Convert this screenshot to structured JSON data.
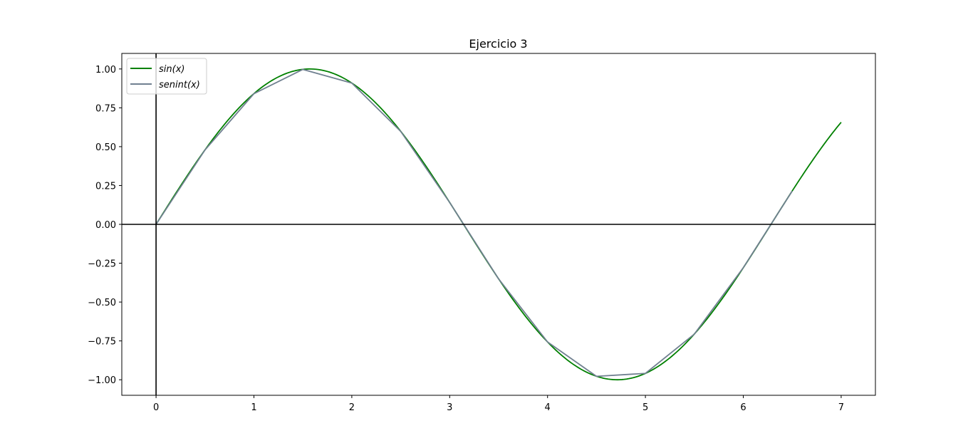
{
  "chart_data": {
    "type": "line",
    "title": "Ejercicio 3",
    "xlabel": "",
    "ylabel": "",
    "xlim": [
      -0.35,
      7.35
    ],
    "ylim": [
      -1.1,
      1.1
    ],
    "x_ticks": [
      0,
      1,
      2,
      3,
      4,
      5,
      6,
      7
    ],
    "x_tick_labels": [
      "0",
      "1",
      "2",
      "3",
      "4",
      "5",
      "6",
      "7"
    ],
    "y_ticks": [
      1.0,
      0.75,
      0.5,
      0.25,
      0.0,
      -0.25,
      -0.5,
      -0.75,
      -1.0
    ],
    "y_tick_labels": [
      "1.00",
      "0.75",
      "0.50",
      "0.25",
      "0.00",
      "−0.25",
      "−0.50",
      "−0.75",
      "−1.00"
    ],
    "grid": false,
    "legend_position": "top-left",
    "reference_lines": {
      "horizontal_y": 0,
      "vertical_x": 0,
      "color": "#000000"
    },
    "series": [
      {
        "name": "sin(x)",
        "color": "#008000",
        "x": [
          0.0,
          0.25,
          0.5,
          0.75,
          1.0,
          1.25,
          1.5,
          1.75,
          2.0,
          2.25,
          2.5,
          2.75,
          3.0,
          3.25,
          3.5,
          3.75,
          4.0,
          4.25,
          4.5,
          4.75,
          5.0,
          5.25,
          5.5,
          5.75,
          6.0,
          6.25,
          6.5,
          6.75,
          7.0
        ],
        "y": [
          0.0,
          0.247,
          0.479,
          0.682,
          0.841,
          0.949,
          0.997,
          0.984,
          0.909,
          0.778,
          0.598,
          0.382,
          0.141,
          -0.108,
          -0.351,
          -0.572,
          -0.757,
          -0.895,
          -0.978,
          -0.999,
          -0.959,
          -0.859,
          -0.706,
          -0.508,
          -0.279,
          -0.033,
          0.215,
          0.451,
          0.657
        ]
      },
      {
        "name": "senint(x)",
        "color": "#708090",
        "x": [
          0.0,
          0.5,
          1.0,
          1.5,
          2.0,
          2.5,
          3.0,
          3.5,
          4.0,
          4.5,
          5.0,
          5.5,
          6.0,
          6.5
        ],
        "y": [
          0.0,
          0.479,
          0.841,
          0.997,
          0.909,
          0.598,
          0.141,
          -0.351,
          -0.757,
          -0.978,
          -0.959,
          -0.706,
          -0.279,
          0.215
        ]
      }
    ]
  }
}
